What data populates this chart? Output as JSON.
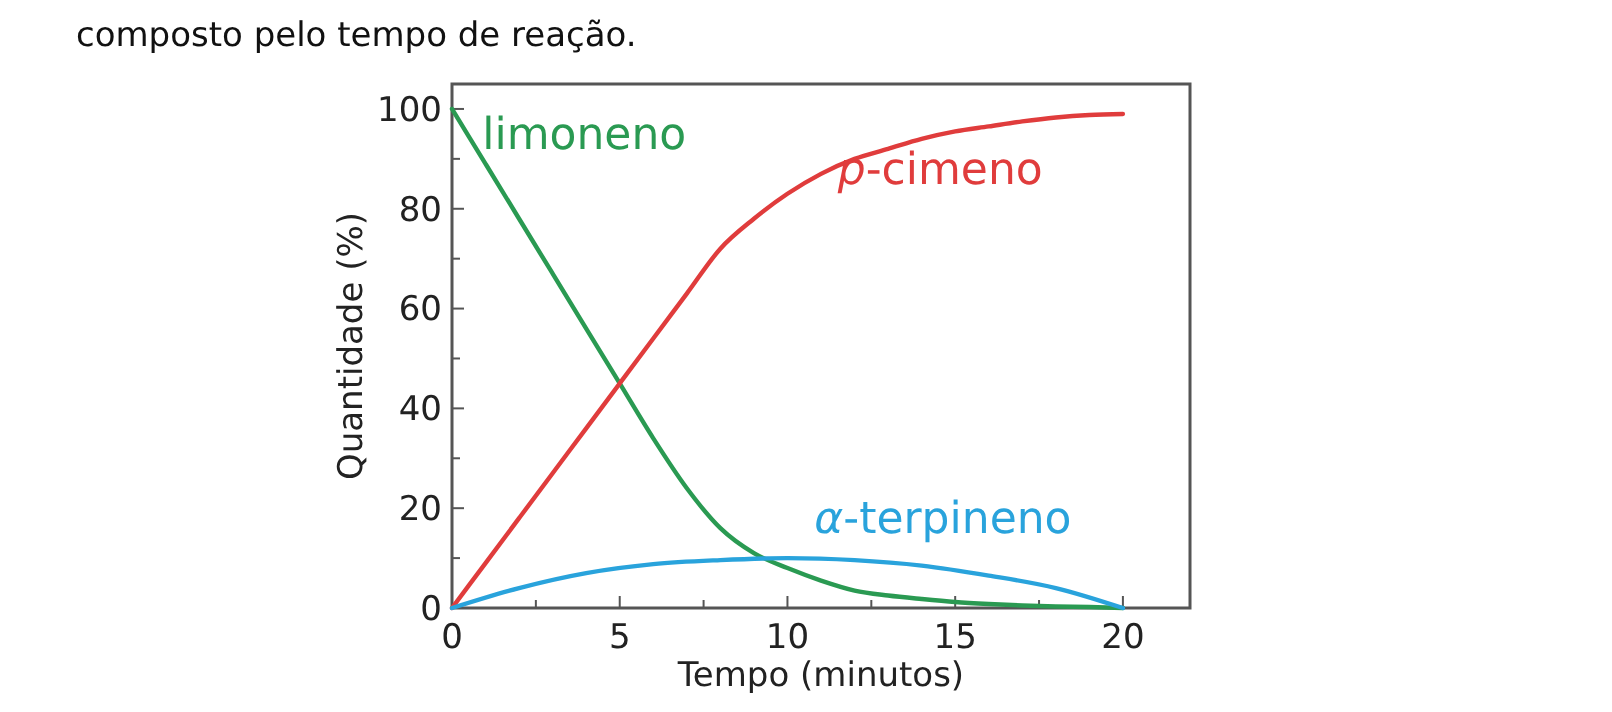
{
  "chart_data": {
    "type": "line",
    "annotations": [
      "composto pelo tempo de reação."
    ],
    "xlabel": "Tempo (minutos)",
    "ylabel": "Quantidade (%)",
    "xlim": [
      0,
      22
    ],
    "xticks": [
      0,
      {
        "value": 2.5,
        "label": null
      },
      5,
      {
        "value": 7.5,
        "label": null
      },
      10,
      {
        "value": 12.5,
        "label": null
      },
      15,
      {
        "value": 17.5,
        "label": null
      },
      20
    ],
    "ylim": [
      0,
      105
    ],
    "yticks": [
      0,
      {
        "value": 10,
        "label": null
      },
      20,
      {
        "value": 30,
        "label": null
      },
      40,
      {
        "value": 50,
        "label": null
      },
      60,
      {
        "value": 70,
        "label": null
      },
      80,
      {
        "value": 90,
        "label": null
      },
      100
    ],
    "grid": false,
    "marker": "none",
    "line_style": "solid",
    "series": [
      {
        "name": "limoneno",
        "color": "#2a9a52",
        "x": [
          0,
          1,
          2,
          3,
          4,
          5,
          6,
          7,
          8,
          9,
          10,
          11,
          12,
          13,
          14,
          15,
          16,
          17,
          18,
          19,
          20
        ],
        "values": [
          100,
          89,
          78,
          67,
          56,
          45,
          34,
          24,
          16,
          11,
          8,
          5.5,
          3.5,
          2.5,
          1.8,
          1.2,
          0.8,
          0.5,
          0.3,
          0.2,
          0
        ]
      },
      {
        "name": "p-cimeno",
        "color": "#e03c3c",
        "x": [
          0,
          1,
          2,
          3,
          4,
          5,
          6,
          7,
          8,
          9,
          10,
          11,
          12,
          13,
          14,
          15,
          16,
          17,
          18,
          19,
          20
        ],
        "values": [
          0,
          9,
          18,
          27,
          36,
          45,
          54,
          63,
          72,
          78,
          83,
          87,
          90,
          92,
          94,
          95.5,
          96.5,
          97.5,
          98.3,
          98.8,
          99
        ]
      },
      {
        "name": "α-terpineno",
        "color": "#29a3dc",
        "x": [
          0,
          2,
          4,
          6,
          8,
          10,
          12,
          14,
          16,
          18,
          20
        ],
        "values": [
          0,
          4,
          7,
          8.8,
          9.6,
          10,
          9.6,
          8.5,
          6.5,
          4,
          0
        ]
      }
    ]
  }
}
